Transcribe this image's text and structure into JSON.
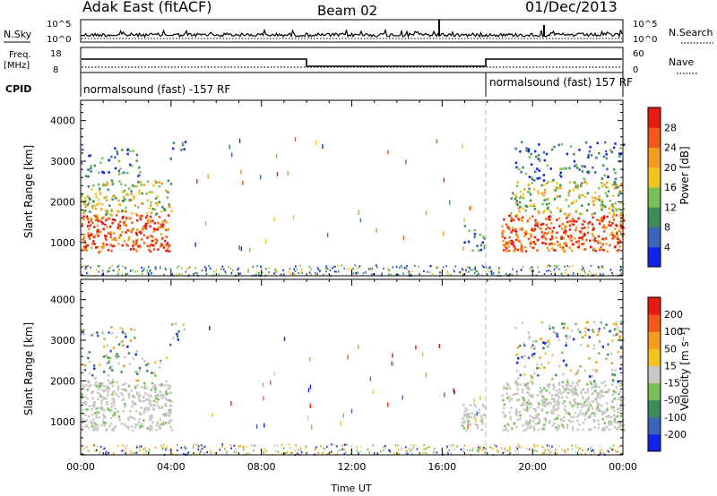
{
  "header": {
    "station": "Adak East (fitACF)",
    "beam": "Beam 02",
    "date": "01/Dec/2013"
  },
  "panels": {
    "nsky": {
      "label": "N.Sky",
      "tick_top": "10^5",
      "tick_bottom": "10^0",
      "right_label": "N.Search",
      "right_tick_top": "10^5",
      "right_tick_bottom": "10^0"
    },
    "freq": {
      "label_line1": "Freq.",
      "label_line2": "[MHz]",
      "tick_top": "18",
      "tick_bottom": "8",
      "right_label": "Nave",
      "right_tick_top": "60",
      "right_tick_bottom": "0"
    },
    "cpid": {
      "label": "CPID",
      "left_program": "normalsound (fast) -157 RF",
      "right_program": "normalsound (fast) 157 RF"
    }
  },
  "chart_data": [
    {
      "type": "heatmap",
      "title": "",
      "ylabel": "Slant Range [km]",
      "xlabel": "",
      "ylim": [
        180,
        4500
      ],
      "yticks": [
        "1000",
        "2000",
        "3000",
        "4000"
      ],
      "xlim_hours": [
        0,
        24
      ],
      "colorbar": {
        "label": "Power [dB]",
        "ticks": [
          "4",
          "8",
          "12",
          "16",
          "20",
          "24",
          "28"
        ],
        "colors": [
          "#1024e8",
          "#3c64b8",
          "#3e8c5a",
          "#79c058",
          "#f0c420",
          "#f59b20",
          "#f05a18",
          "#e61a10"
        ]
      },
      "echo_regions": [
        {
          "t0": 0.0,
          "t1": 3.9,
          "r0": 780,
          "r1": 1700,
          "intensity": "strong"
        },
        {
          "t0": 0.0,
          "t1": 4.0,
          "r0": 1700,
          "r1": 2550,
          "intensity": "medium"
        },
        {
          "t0": 0.0,
          "t1": 2.6,
          "r0": 2550,
          "r1": 3350,
          "intensity": "weak"
        },
        {
          "t0": 3.9,
          "t1": 4.6,
          "r0": 2900,
          "r1": 3550,
          "intensity": "weak"
        },
        {
          "t0": 16.8,
          "t1": 17.9,
          "r0": 800,
          "r1": 1450,
          "intensity": "weak"
        },
        {
          "t0": 18.6,
          "t1": 24.0,
          "r0": 800,
          "r1": 1700,
          "intensity": "strong"
        },
        {
          "t0": 19.0,
          "t1": 24.0,
          "r0": 1700,
          "r1": 2550,
          "intensity": "medium"
        },
        {
          "t0": 19.2,
          "t1": 24.0,
          "r0": 2550,
          "r1": 3500,
          "intensity": "weak"
        }
      ]
    },
    {
      "type": "heatmap",
      "title": "",
      "ylabel": "Slant Range [km]",
      "xlabel": "Time UT",
      "ylim": [
        180,
        4500
      ],
      "yticks": [
        "1000",
        "2000",
        "3000",
        "4000"
      ],
      "xticks": [
        "00:00",
        "04:00",
        "08:00",
        "12:00",
        "16:00",
        "20:00",
        "00:00"
      ],
      "xlim_hours": [
        0,
        24
      ],
      "colorbar": {
        "label": "Velocity [m s⁻¹]",
        "ticks": [
          "200",
          "100",
          "50",
          "15",
          "-15",
          "-50",
          "-100",
          "-200"
        ],
        "colors": [
          "#1024e8",
          "#3c64b8",
          "#3e8c5a",
          "#79c058",
          "#c8c8c4",
          "#f0c420",
          "#f59b20",
          "#f05a18",
          "#e61a10"
        ]
      },
      "echo_regions": [
        {
          "t0": 0.0,
          "t1": 4.0,
          "r0": 800,
          "r1": 2000,
          "intensity": "ground"
        },
        {
          "t0": 0.0,
          "t1": 3.8,
          "r0": 2000,
          "r1": 2650,
          "intensity": "mixed"
        },
        {
          "t0": 0.0,
          "t1": 2.6,
          "r0": 2650,
          "r1": 3350,
          "intensity": "mixed"
        },
        {
          "t0": 3.9,
          "t1": 4.6,
          "r0": 2900,
          "r1": 3550,
          "intensity": "mixed"
        },
        {
          "t0": 16.8,
          "t1": 17.9,
          "r0": 800,
          "r1": 1450,
          "intensity": "ground"
        },
        {
          "t0": 18.6,
          "t1": 24.0,
          "r0": 800,
          "r1": 2000,
          "intensity": "ground"
        },
        {
          "t0": 19.2,
          "t1": 24.0,
          "r0": 2000,
          "r1": 3500,
          "intensity": "mixed"
        }
      ]
    }
  ]
}
